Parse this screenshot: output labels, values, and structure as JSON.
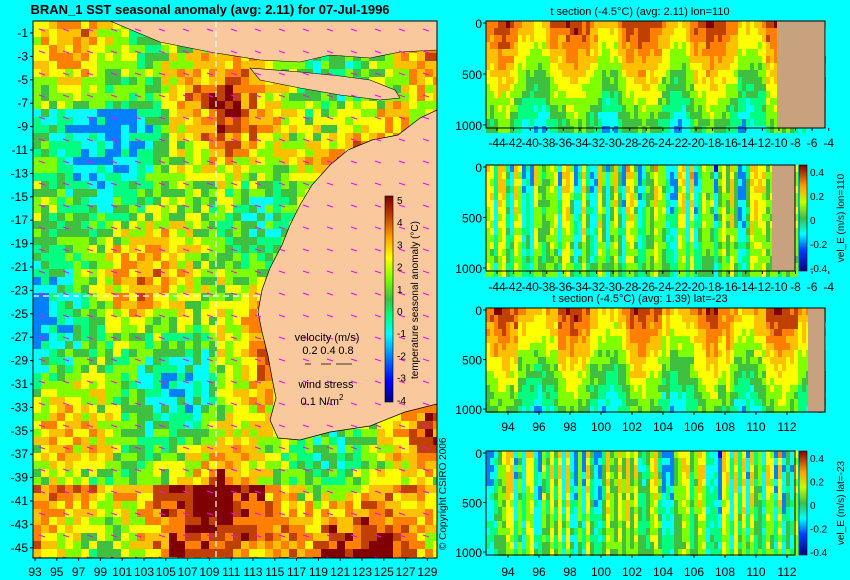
{
  "colors": {
    "background": "#00ffff",
    "land": "#f9c89c",
    "land_section": "#c8a27e",
    "scale": [
      "#00007f",
      "#0000ff",
      "#0080ff",
      "#00ffff",
      "#00ff80",
      "#40c040",
      "#80ff00",
      "#ffff00",
      "#ffc000",
      "#ff8000",
      "#c04000",
      "#800000"
    ]
  },
  "chart_data": [
    {
      "type": "heatmap",
      "title": "BRAN_1 SST seasonal anomaly (avg: 2.11) for 07-Jul-1996",
      "x_ticks": [
        "93",
        "95",
        "97",
        "99",
        "101",
        "103",
        "105",
        "107",
        "109",
        "111",
        "113",
        "115",
        "117",
        "119",
        "121",
        "123",
        "125",
        "127",
        "129"
      ],
      "y_ticks": [
        "-1",
        "-3",
        "-5",
        "-7",
        "-9",
        "-11",
        "-13",
        "-15",
        "-17",
        "-19",
        "-21",
        "-23",
        "-25",
        "-27",
        "-29",
        "-31",
        "-33",
        "-35",
        "-37",
        "-39",
        "-41",
        "-43",
        "-45"
      ],
      "xlim": [
        93,
        130
      ],
      "ylim": [
        -45,
        0
      ],
      "colorbar": {
        "label": "temperature seasonal anomaly (°C)",
        "ticks": [
          "5",
          "4",
          "3",
          "2",
          "1",
          "0",
          "-1",
          "-2",
          "-3",
          "-4"
        ],
        "range": [
          -4,
          5
        ]
      },
      "legend": {
        "velocity_label": "velocity (m/s)",
        "velocity_values": [
          "0.2",
          "0.4",
          "0.8"
        ],
        "wind_label": "wind stress",
        "wind_value": "0.1 N/m",
        "wind_exp": "2"
      },
      "copyright": "© Copyright CSIRO 2006",
      "section_lines": {
        "lon": 110,
        "lat": -23
      }
    },
    {
      "type": "heatmap",
      "title": "t section (-4.5°C) (avg: 2.11) lon=110",
      "x_ticks": [
        "-44",
        "-42",
        "-40",
        "-38",
        "-36",
        "-34",
        "-32",
        "-30",
        "-28",
        "-26",
        "-24",
        "-22",
        "-20",
        "-18",
        "-16",
        "-14",
        "-12",
        "-10",
        "-8",
        "-6",
        "-4"
      ],
      "y_ticks": [
        "0",
        "500",
        "1000"
      ],
      "xlim": [
        -45,
        -2
      ],
      "ylim": [
        1050,
        0
      ]
    },
    {
      "type": "heatmap",
      "title": "",
      "x_ticks": [
        "-44",
        "-42",
        "-40",
        "-38",
        "-36",
        "-34",
        "-32",
        "-30",
        "-28",
        "-26",
        "-24",
        "-22",
        "-20",
        "-18",
        "-16",
        "-14",
        "-12",
        "-10",
        "-8",
        "-6",
        "-4"
      ],
      "y_ticks": [
        "0",
        "500",
        "1000"
      ],
      "xlim": [
        -45,
        -2
      ],
      "ylim": [
        1050,
        0
      ],
      "colorbar": {
        "label": "vel_E (m/s) lon=110",
        "ticks": [
          "0.4",
          "0.2",
          "0",
          "-0.2",
          "-0.4"
        ]
      }
    },
    {
      "type": "heatmap",
      "title": "t section (-4.5°C) (avg: 1.39) lat=-23",
      "x_ticks": [
        "94",
        "96",
        "98",
        "100",
        "102",
        "104",
        "106",
        "108",
        "110",
        "112"
      ],
      "y_ticks": [
        "0",
        "500",
        "1000"
      ],
      "xlim": [
        93,
        114
      ],
      "ylim": [
        1050,
        0
      ]
    },
    {
      "type": "heatmap",
      "title": "",
      "x_ticks": [
        "94",
        "96",
        "98",
        "100",
        "102",
        "104",
        "106",
        "108",
        "110",
        "112"
      ],
      "y_ticks": [
        "0",
        "500",
        "1000"
      ],
      "xlim": [
        93,
        114
      ],
      "ylim": [
        1050,
        0
      ],
      "colorbar": {
        "label": "vel_E (m/s) lat=-23",
        "ticks": [
          "0.4",
          "0.2",
          "0",
          "-0.2",
          "-0.4"
        ]
      }
    }
  ]
}
